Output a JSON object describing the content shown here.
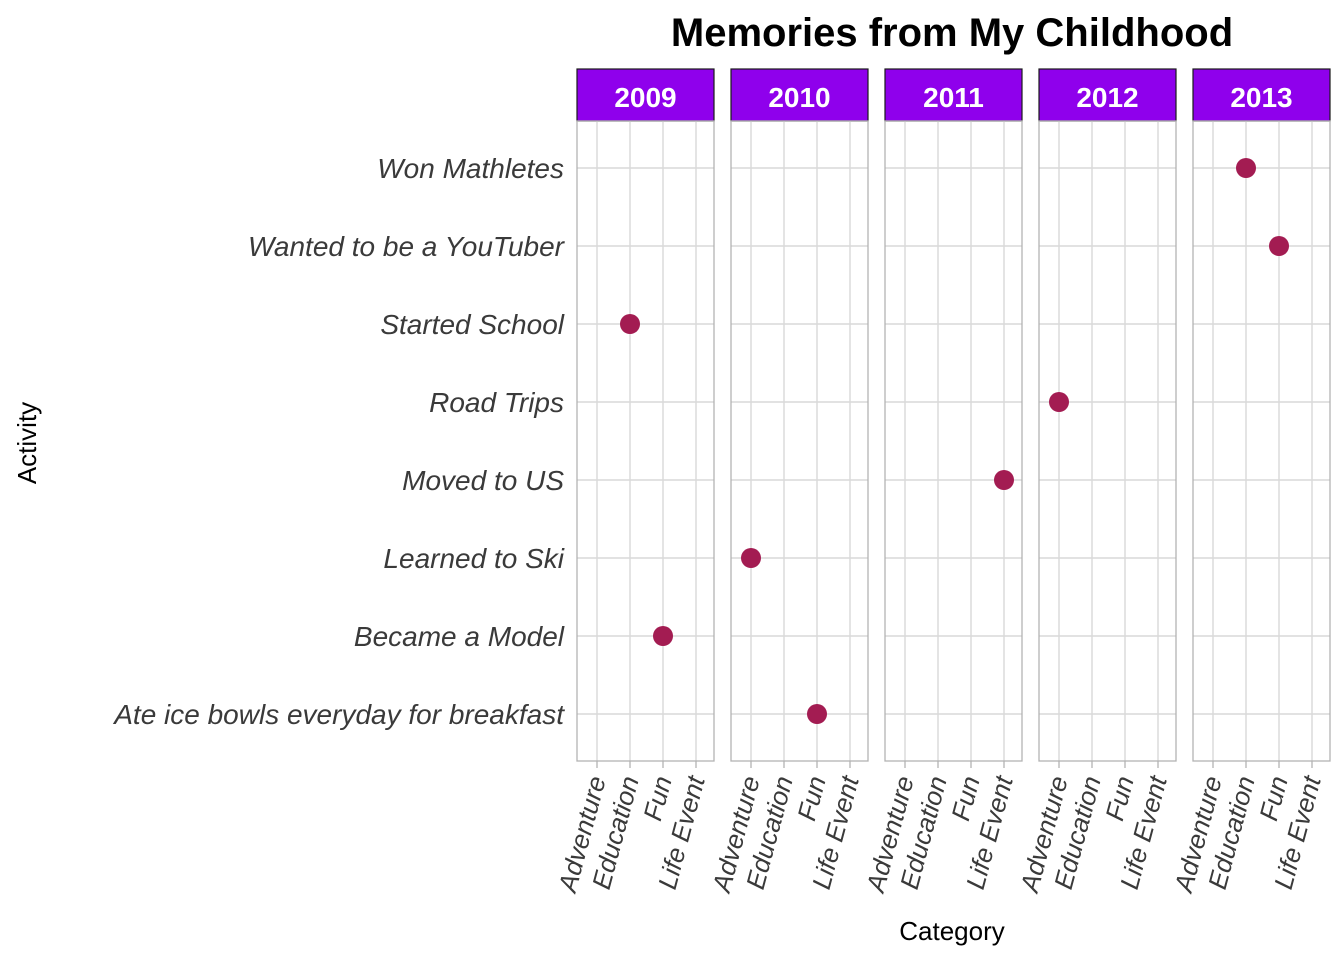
{
  "chart_data": {
    "type": "scatter",
    "title": "Memories from My Childhood",
    "xlabel": "Category",
    "ylabel": "Activity",
    "grid": true,
    "facet_by": "year",
    "facets": [
      "2009",
      "2010",
      "2011",
      "2012",
      "2013"
    ],
    "categories": [
      "Adventure",
      "Education",
      "Fun",
      "Life Event"
    ],
    "activities": [
      "Ate ice bowls everyday for breakfast",
      "Became a Model",
      "Learned to Ski",
      "Moved to US",
      "Road Trips",
      "Started School",
      "Wanted to be a YouTuber",
      "Won Mathletes"
    ],
    "points": [
      {
        "facet": "2009",
        "category": "Education",
        "activity": "Started School"
      },
      {
        "facet": "2009",
        "category": "Fun",
        "activity": "Became a Model"
      },
      {
        "facet": "2010",
        "category": "Adventure",
        "activity": "Learned to Ski"
      },
      {
        "facet": "2010",
        "category": "Fun",
        "activity": "Ate ice bowls everyday for breakfast"
      },
      {
        "facet": "2011",
        "category": "Life Event",
        "activity": "Moved to US"
      },
      {
        "facet": "2012",
        "category": "Adventure",
        "activity": "Road Trips"
      },
      {
        "facet": "2013",
        "category": "Education",
        "activity": "Won Mathletes"
      },
      {
        "facet": "2013",
        "category": "Fun",
        "activity": "Wanted to be a YouTuber"
      }
    ],
    "colors": {
      "strip_fill": "#8F00EC",
      "strip_text": "#ffffff",
      "point": "#A31C52",
      "grid": "#D9D9D9",
      "panel_border": "#B3B3B3"
    }
  }
}
